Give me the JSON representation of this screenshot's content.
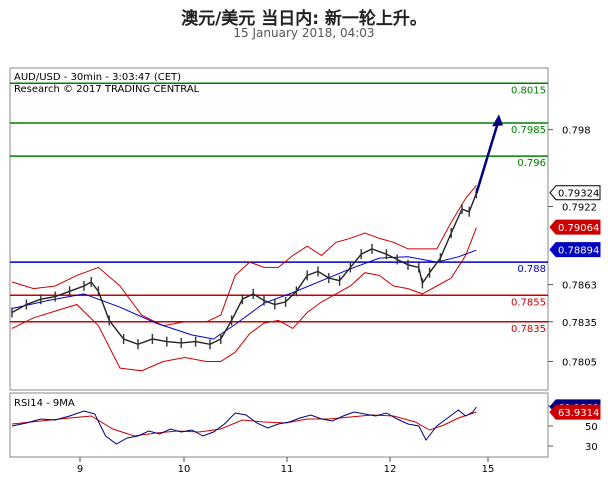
{
  "header": {
    "title": "澳元/美元 当日内: 新一轮上升。",
    "subtitle": "15 January 2018, 04:03"
  },
  "chart_data": {
    "type": "line",
    "instrument_label": "AUD/USD - 30min - 3:03:47 (CET)",
    "research_label": "Research © 2017 TRADING CENTRAL",
    "x_ticks": [
      "9",
      "10",
      "11",
      "12",
      "15"
    ],
    "y_ticks": [
      0.7805,
      0.7835,
      0.7863,
      0.7922,
      0.798
    ],
    "ylim": [
      0.7785,
      0.8025
    ],
    "levels": [
      {
        "value": 0.8015,
        "label": "0.8015",
        "kind": "resistance",
        "color": "#008000"
      },
      {
        "value": 0.7985,
        "label": "0.7985",
        "kind": "resistance",
        "color": "#008000"
      },
      {
        "value": 0.796,
        "label": "0.796",
        "kind": "resistance",
        "color": "#008000"
      },
      {
        "value": 0.788,
        "label": "0.788",
        "kind": "pivot",
        "color": "#0000c0"
      },
      {
        "value": 0.7855,
        "label": "0.7855",
        "kind": "support",
        "color": "#cc0000"
      },
      {
        "value": 0.7835,
        "label": "0.7835",
        "kind": "support",
        "color": "#cc0000"
      }
    ],
    "price_tags": [
      {
        "value": 0.79324,
        "label": "0.79324",
        "bg": "#ffffff",
        "fg": "#000000"
      },
      {
        "value": 0.79064,
        "label": "0.79064",
        "bg": "#cc0000",
        "fg": "#ffffff"
      },
      {
        "value": 0.78894,
        "label": "0.78894",
        "bg": "#0000c0",
        "fg": "#ffffff"
      }
    ],
    "price_series": [
      [
        0,
        0.7842
      ],
      [
        4,
        0.7848
      ],
      [
        8,
        0.7852
      ],
      [
        12,
        0.7854
      ],
      [
        16,
        0.7858
      ],
      [
        20,
        0.7862
      ],
      [
        22,
        0.7865
      ],
      [
        24,
        0.7858
      ],
      [
        27,
        0.7836
      ],
      [
        31,
        0.7822
      ],
      [
        35,
        0.7818
      ],
      [
        39,
        0.7822
      ],
      [
        43,
        0.782
      ],
      [
        47,
        0.7819
      ],
      [
        51,
        0.782
      ],
      [
        55,
        0.7818
      ],
      [
        58,
        0.7822
      ],
      [
        61,
        0.7836
      ],
      [
        64,
        0.7852
      ],
      [
        67,
        0.7856
      ],
      [
        70,
        0.7851
      ],
      [
        73,
        0.7848
      ],
      [
        76,
        0.785
      ],
      [
        79,
        0.7858
      ],
      [
        82,
        0.787
      ],
      [
        85,
        0.7873
      ],
      [
        88,
        0.7868
      ],
      [
        91,
        0.7866
      ],
      [
        94,
        0.7876
      ],
      [
        97,
        0.7886
      ],
      [
        100,
        0.789
      ],
      [
        104,
        0.7886
      ],
      [
        107,
        0.7882
      ],
      [
        110,
        0.7878
      ],
      [
        113,
        0.7876
      ],
      [
        114,
        0.7864
      ],
      [
        116,
        0.7872
      ],
      [
        119,
        0.7883
      ],
      [
        122,
        0.7902
      ],
      [
        125,
        0.792
      ],
      [
        127,
        0.7918
      ],
      [
        129,
        0.7932
      ]
    ],
    "price_arrow": [
      [
        129,
        0.7932
      ],
      [
        135,
        0.799
      ]
    ],
    "bb_upper": [
      [
        0,
        0.7865
      ],
      [
        6,
        0.786
      ],
      [
        12,
        0.7862
      ],
      [
        18,
        0.787
      ],
      [
        24,
        0.7876
      ],
      [
        30,
        0.7862
      ],
      [
        36,
        0.784
      ],
      [
        42,
        0.7832
      ],
      [
        48,
        0.7835
      ],
      [
        54,
        0.7835
      ],
      [
        58,
        0.784
      ],
      [
        62,
        0.787
      ],
      [
        66,
        0.788
      ],
      [
        70,
        0.7876
      ],
      [
        74,
        0.7876
      ],
      [
        78,
        0.7885
      ],
      [
        82,
        0.7892
      ],
      [
        86,
        0.7885
      ],
      [
        90,
        0.7895
      ],
      [
        94,
        0.7898
      ],
      [
        98,
        0.7902
      ],
      [
        102,
        0.7898
      ],
      [
        106,
        0.7895
      ],
      [
        110,
        0.789
      ],
      [
        114,
        0.789
      ],
      [
        118,
        0.789
      ],
      [
        122,
        0.791
      ],
      [
        126,
        0.7928
      ],
      [
        129,
        0.7938
      ]
    ],
    "bb_lower": [
      [
        0,
        0.783
      ],
      [
        6,
        0.7838
      ],
      [
        12,
        0.7843
      ],
      [
        18,
        0.7848
      ],
      [
        24,
        0.7832
      ],
      [
        30,
        0.78
      ],
      [
        36,
        0.7798
      ],
      [
        42,
        0.7805
      ],
      [
        48,
        0.7808
      ],
      [
        54,
        0.7805
      ],
      [
        58,
        0.7805
      ],
      [
        62,
        0.7812
      ],
      [
        66,
        0.7826
      ],
      [
        70,
        0.7834
      ],
      [
        74,
        0.7836
      ],
      [
        78,
        0.783
      ],
      [
        82,
        0.7842
      ],
      [
        86,
        0.785
      ],
      [
        90,
        0.7856
      ],
      [
        94,
        0.7862
      ],
      [
        98,
        0.7872
      ],
      [
        102,
        0.787
      ],
      [
        106,
        0.7862
      ],
      [
        110,
        0.786
      ],
      [
        114,
        0.7856
      ],
      [
        118,
        0.7862
      ],
      [
        122,
        0.7868
      ],
      [
        126,
        0.7885
      ],
      [
        129,
        0.7906
      ]
    ],
    "ma_series": [
      [
        0,
        0.7845
      ],
      [
        10,
        0.7851
      ],
      [
        20,
        0.7856
      ],
      [
        30,
        0.7846
      ],
      [
        40,
        0.7834
      ],
      [
        50,
        0.7825
      ],
      [
        56,
        0.7822
      ],
      [
        62,
        0.7833
      ],
      [
        70,
        0.7849
      ],
      [
        78,
        0.7857
      ],
      [
        86,
        0.7866
      ],
      [
        94,
        0.7875
      ],
      [
        102,
        0.7883
      ],
      [
        110,
        0.7884
      ],
      [
        118,
        0.788
      ],
      [
        124,
        0.7884
      ],
      [
        129,
        0.7889
      ]
    ],
    "rsi": {
      "label": "RSI14 - 9MA",
      "y_ticks": [
        70,
        50,
        30
      ],
      "ylim": [
        22,
        80
      ],
      "value_tags": [
        {
          "value": 69.1381,
          "label": "69.1381",
          "bg": "#000080",
          "fg": "#ffffff"
        },
        {
          "value": 63.9314,
          "label": "63.9314",
          "bg": "#cc0000",
          "fg": "#ffffff"
        }
      ],
      "rsi_series": [
        [
          0,
          50
        ],
        [
          4,
          53
        ],
        [
          8,
          57
        ],
        [
          12,
          56
        ],
        [
          16,
          60
        ],
        [
          20,
          65
        ],
        [
          23,
          62
        ],
        [
          26,
          40
        ],
        [
          29,
          32
        ],
        [
          32,
          38
        ],
        [
          35,
          40
        ],
        [
          38,
          45
        ],
        [
          41,
          42
        ],
        [
          44,
          47
        ],
        [
          47,
          44
        ],
        [
          50,
          46
        ],
        [
          53,
          40
        ],
        [
          56,
          44
        ],
        [
          59,
          52
        ],
        [
          62,
          63
        ],
        [
          65,
          61
        ],
        [
          68,
          53
        ],
        [
          71,
          48
        ],
        [
          74,
          52
        ],
        [
          77,
          54
        ],
        [
          80,
          58
        ],
        [
          83,
          61
        ],
        [
          86,
          57
        ],
        [
          89,
          55
        ],
        [
          92,
          60
        ],
        [
          95,
          64
        ],
        [
          98,
          62
        ],
        [
          101,
          60
        ],
        [
          104,
          63
        ],
        [
          107,
          57
        ],
        [
          110,
          52
        ],
        [
          113,
          50
        ],
        [
          115,
          36
        ],
        [
          118,
          50
        ],
        [
          121,
          58
        ],
        [
          124,
          66
        ],
        [
          126,
          60
        ],
        [
          128,
          64
        ],
        [
          129,
          69
        ]
      ],
      "ma_series": [
        [
          0,
          52
        ],
        [
          8,
          55
        ],
        [
          16,
          58
        ],
        [
          22,
          60
        ],
        [
          28,
          47
        ],
        [
          34,
          40
        ],
        [
          40,
          43
        ],
        [
          46,
          45
        ],
        [
          52,
          44
        ],
        [
          58,
          47
        ],
        [
          64,
          56
        ],
        [
          70,
          54
        ],
        [
          76,
          53
        ],
        [
          82,
          57
        ],
        [
          88,
          57
        ],
        [
          94,
          59
        ],
        [
          100,
          61
        ],
        [
          106,
          60
        ],
        [
          112,
          54
        ],
        [
          116,
          46
        ],
        [
          120,
          51
        ],
        [
          124,
          58
        ],
        [
          129,
          64
        ]
      ]
    }
  }
}
